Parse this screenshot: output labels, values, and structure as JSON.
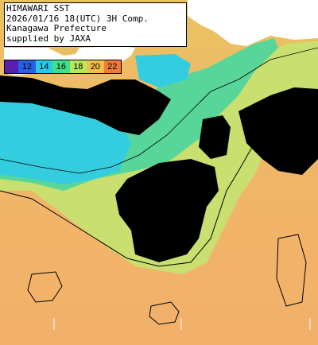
{
  "title": {
    "line1": "HIMAWARI SST",
    "line2": "2026/01/16 18(UTC) 3H Comp.",
    "line3": "Kanagawa Prefecture",
    "line4": "supplied by JAXA"
  },
  "legend": {
    "labels": [
      "12",
      "14",
      "16",
      "18",
      "20",
      "22"
    ],
    "colors": [
      "#5a1fb0",
      "#2b5ee8",
      "#27c9e8",
      "#3ee08a",
      "#b6e85a",
      "#f2c04a",
      "#f07a3a"
    ]
  },
  "colors": {
    "no_data": "#000000",
    "land": "#ffffff",
    "warm_sea": "#f0b56a",
    "mid_sea": "#c7e56a",
    "cool_sea": "#52d6a0",
    "cold_sea": "#2fd0e6"
  }
}
